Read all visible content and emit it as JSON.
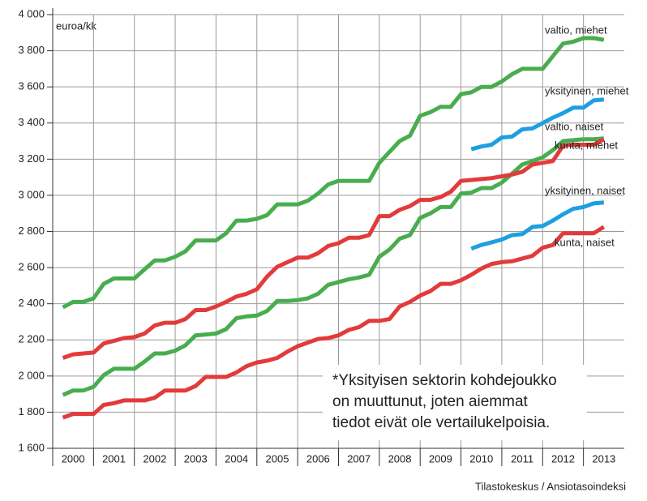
{
  "chart_data": {
    "type": "line",
    "y_label": "euroa/kk",
    "annotation": [
      "*Yksityisen sektorin kohdejoukko",
      "on muuttunut, joten aiemmat",
      "tiedot eivät ole vertailukelpoisia."
    ],
    "source": "Tilastokeskus / Ansiotasoindeksi",
    "x": [
      2000.25,
      2000.5,
      2000.75,
      2001,
      2001.25,
      2001.5,
      2001.75,
      2002,
      2002.25,
      2002.5,
      2002.75,
      2003,
      2003.25,
      2003.5,
      2003.75,
      2004,
      2004.25,
      2004.5,
      2004.75,
      2005,
      2005.25,
      2005.5,
      2005.75,
      2006,
      2006.25,
      2006.5,
      2006.75,
      2007,
      2007.25,
      2007.5,
      2007.75,
      2008,
      2008.25,
      2008.5,
      2008.75,
      2009,
      2009.25,
      2009.5,
      2009.75,
      2010,
      2010.25,
      2010.5,
      2010.75,
      2011,
      2011.25,
      2011.5,
      2011.75,
      2012,
      2012.25,
      2012.5,
      2012.75,
      2013,
      2013.25,
      2013.5
    ],
    "xlim": [
      2000,
      2014
    ],
    "xticks": [
      2000,
      2001,
      2002,
      2003,
      2004,
      2005,
      2006,
      2007,
      2008,
      2009,
      2010,
      2011,
      2012,
      2013
    ],
    "ylim": [
      1600,
      4000
    ],
    "yticks": [
      {
        "value": 1600,
        "label": "1 600"
      },
      {
        "value": 1800,
        "label": "1 800"
      },
      {
        "value": 2000,
        "label": "2 000"
      },
      {
        "value": 2200,
        "label": "2 200"
      },
      {
        "value": 2400,
        "label": "2 400"
      },
      {
        "value": 2600,
        "label": "2 600"
      },
      {
        "value": 2800,
        "label": "2 800"
      },
      {
        "value": 3000,
        "label": "3 000"
      },
      {
        "value": 3200,
        "label": "3 200"
      },
      {
        "value": 3400,
        "label": "3 400"
      },
      {
        "value": 3600,
        "label": "3 600"
      },
      {
        "value": 3800,
        "label": "3 800"
      },
      {
        "value": 4000,
        "label": "4 000"
      }
    ],
    "grid": true,
    "series": [
      {
        "name": "valtio, miehet",
        "color": "#48ad4e",
        "values": [
          2380,
          2410,
          2410,
          2430,
          2510,
          2540,
          2540,
          2540,
          2590,
          2640,
          2640,
          2660,
          2690,
          2750,
          2750,
          2750,
          2790,
          2860,
          2860,
          2870,
          2890,
          2950,
          2950,
          2950,
          2970,
          3010,
          3060,
          3080,
          3080,
          3080,
          3080,
          3180,
          3240,
          3300,
          3330,
          3440,
          3460,
          3490,
          3490,
          3560,
          3570,
          3600,
          3600,
          3630,
          3670,
          3700,
          3700,
          3700,
          3770,
          3840,
          3850,
          3870,
          3870,
          3860
        ]
      },
      {
        "name": "yksityinen, miehet",
        "color": "#1e9fe0",
        "values": [
          null,
          null,
          null,
          null,
          null,
          null,
          null,
          null,
          null,
          null,
          null,
          null,
          null,
          null,
          null,
          null,
          null,
          null,
          null,
          null,
          null,
          null,
          null,
          null,
          null,
          null,
          null,
          null,
          null,
          null,
          null,
          null,
          null,
          null,
          null,
          null,
          null,
          null,
          null,
          null,
          3255,
          3270,
          3280,
          3320,
          3325,
          3365,
          3370,
          3400,
          3430,
          3455,
          3485,
          3485,
          3525,
          3530
        ]
      },
      {
        "name": "valtio, naiset",
        "color": "#48ad4e",
        "values": [
          1895,
          1920,
          1920,
          1940,
          2005,
          2040,
          2040,
          2040,
          2080,
          2125,
          2125,
          2140,
          2170,
          2225,
          2230,
          2235,
          2260,
          2320,
          2330,
          2335,
          2360,
          2415,
          2415,
          2420,
          2430,
          2455,
          2505,
          2520,
          2535,
          2545,
          2560,
          2660,
          2700,
          2760,
          2780,
          2875,
          2900,
          2935,
          2935,
          3010,
          3015,
          3040,
          3040,
          3070,
          3120,
          3170,
          3190,
          3210,
          3250,
          3300,
          3305,
          3310,
          3310,
          3315
        ]
      },
      {
        "name": "kunta, miehet",
        "color": "#e23b3b",
        "values": [
          2100,
          2120,
          2125,
          2130,
          2180,
          2195,
          2210,
          2215,
          2235,
          2280,
          2295,
          2295,
          2315,
          2365,
          2365,
          2385,
          2410,
          2440,
          2455,
          2480,
          2550,
          2605,
          2630,
          2655,
          2655,
          2680,
          2720,
          2735,
          2765,
          2765,
          2780,
          2885,
          2885,
          2920,
          2940,
          2975,
          2975,
          2990,
          3020,
          3080,
          3085,
          3090,
          3095,
          3105,
          3115,
          3130,
          3170,
          3180,
          3190,
          3275,
          3280,
          3280,
          3280,
          3310
        ]
      },
      {
        "name": "yksityinen, naiset",
        "color": "#1e9fe0",
        "values": [
          null,
          null,
          null,
          null,
          null,
          null,
          null,
          null,
          null,
          null,
          null,
          null,
          null,
          null,
          null,
          null,
          null,
          null,
          null,
          null,
          null,
          null,
          null,
          null,
          null,
          null,
          null,
          null,
          null,
          null,
          null,
          null,
          null,
          null,
          null,
          null,
          null,
          null,
          null,
          null,
          2705,
          2725,
          2740,
          2755,
          2780,
          2785,
          2825,
          2830,
          2860,
          2895,
          2925,
          2935,
          2955,
          2960
        ]
      },
      {
        "name": "kunta, naiset",
        "color": "#e23b3b",
        "values": [
          1770,
          1790,
          1790,
          1790,
          1840,
          1850,
          1865,
          1865,
          1865,
          1880,
          1920,
          1920,
          1920,
          1945,
          1995,
          1995,
          1995,
          2020,
          2055,
          2075,
          2085,
          2100,
          2135,
          2165,
          2185,
          2205,
          2210,
          2225,
          2255,
          2270,
          2305,
          2305,
          2315,
          2385,
          2410,
          2445,
          2470,
          2510,
          2510,
          2530,
          2560,
          2595,
          2620,
          2630,
          2635,
          2650,
          2665,
          2710,
          2725,
          2790,
          2790,
          2790,
          2790,
          2825
        ]
      }
    ]
  }
}
